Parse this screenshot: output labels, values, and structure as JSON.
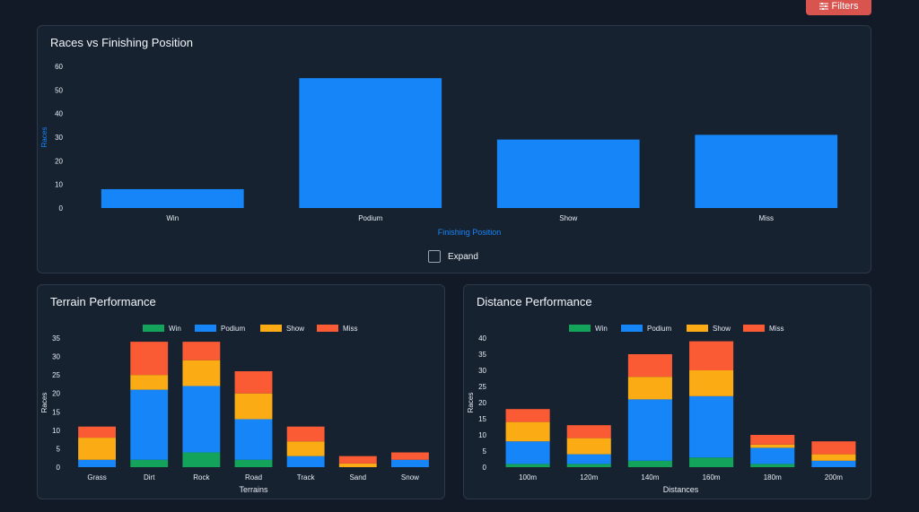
{
  "toolbar": {
    "filters_label": "Filters",
    "filters_icon": "sliders-icon"
  },
  "expand_label": "Expand",
  "colors": {
    "win": "#13a35a",
    "podium": "#1685f8",
    "show": "#fbab13",
    "miss": "#fa5a34"
  },
  "chart_data": [
    {
      "type": "bar",
      "title": "Races vs Finishing Position",
      "categories": [
        "Win",
        "Podium",
        "Show",
        "Miss"
      ],
      "values": [
        8,
        55,
        29,
        31
      ],
      "xlabel": "Finishing Position",
      "ylabel": "Races",
      "ylim": [
        0,
        60
      ],
      "yticks": [
        0,
        10,
        20,
        30,
        40,
        50,
        60
      ],
      "grid": false
    },
    {
      "type": "bar",
      "stacked": true,
      "title": "Terrain Performance",
      "categories": [
        "Grass",
        "Dirt",
        "Rock",
        "Road",
        "Track",
        "Sand",
        "Snow"
      ],
      "series": [
        {
          "name": "Win",
          "values": [
            0,
            2,
            4,
            2,
            0,
            0,
            0
          ]
        },
        {
          "name": "Podium",
          "values": [
            2,
            19,
            18,
            11,
            3,
            0,
            2
          ]
        },
        {
          "name": "Show",
          "values": [
            6,
            4,
            7,
            7,
            4,
            1,
            0
          ]
        },
        {
          "name": "Miss",
          "values": [
            3,
            9,
            5,
            6,
            4,
            2,
            2
          ]
        }
      ],
      "xlabel": "Terrains",
      "ylabel": "Races",
      "ylim": [
        0,
        35
      ],
      "yticks": [
        0,
        5,
        10,
        15,
        20,
        25,
        30,
        35
      ],
      "legend": "top"
    },
    {
      "type": "bar",
      "stacked": true,
      "title": "Distance Performance",
      "categories": [
        "100m",
        "120m",
        "140m",
        "160m",
        "180m",
        "200m"
      ],
      "series": [
        {
          "name": "Win",
          "values": [
            1,
            1,
            2,
            3,
            1,
            0
          ]
        },
        {
          "name": "Podium",
          "values": [
            7,
            3,
            19,
            19,
            5,
            2
          ]
        },
        {
          "name": "Show",
          "values": [
            6,
            5,
            7,
            8,
            1,
            2
          ]
        },
        {
          "name": "Miss",
          "values": [
            4,
            4,
            7,
            9,
            3,
            4
          ]
        }
      ],
      "xlabel": "Distances",
      "ylabel": "Races",
      "ylim": [
        0,
        40
      ],
      "yticks": [
        0,
        5,
        10,
        15,
        20,
        25,
        30,
        35,
        40
      ],
      "legend": "top"
    }
  ]
}
